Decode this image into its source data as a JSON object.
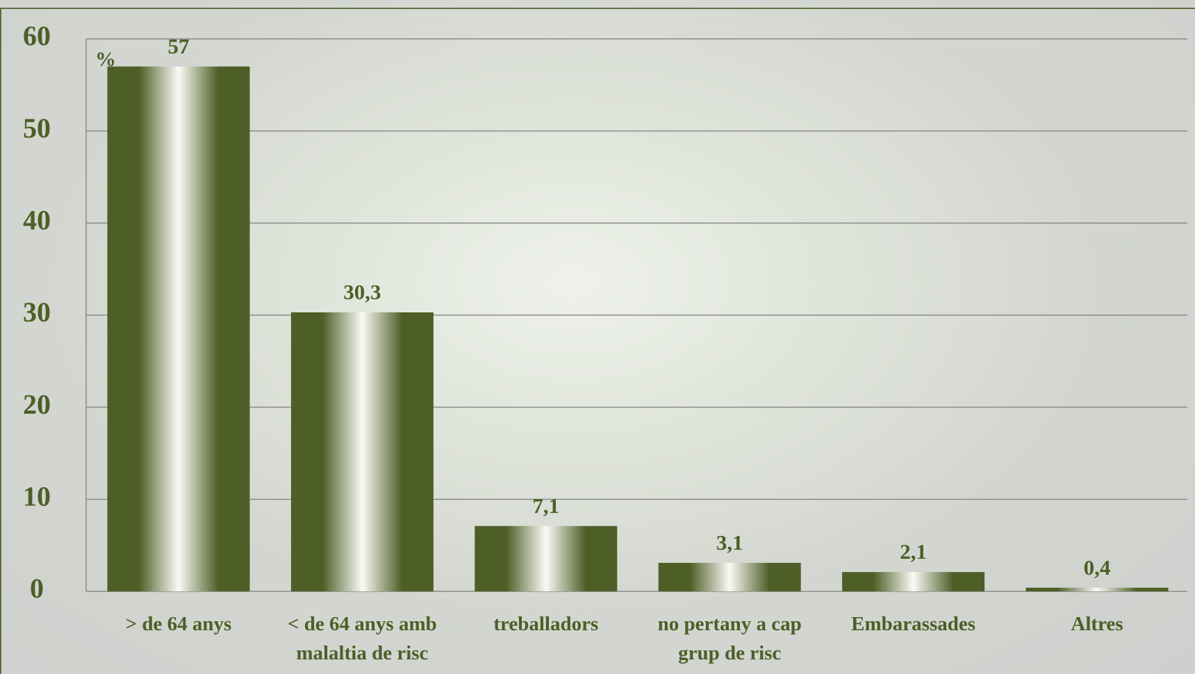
{
  "chart_data": {
    "type": "bar",
    "unit_label": "%",
    "categories": [
      "> de 64 anys",
      "< de 64 anys amb malaltia de risc",
      "treballadors",
      "no pertany a cap grup de risc",
      "Embarassades",
      "Altres"
    ],
    "values": [
      57,
      30.3,
      7.1,
      3.1,
      2.1,
      0.4
    ],
    "value_labels": [
      "57",
      "30,3",
      "7,1",
      "3,1",
      "2,1",
      "0,4"
    ],
    "color": "#4e5e27",
    "ylim": [
      0,
      60
    ],
    "yticks": [
      0,
      10,
      20,
      30,
      40,
      50,
      60
    ],
    "grid": true
  }
}
